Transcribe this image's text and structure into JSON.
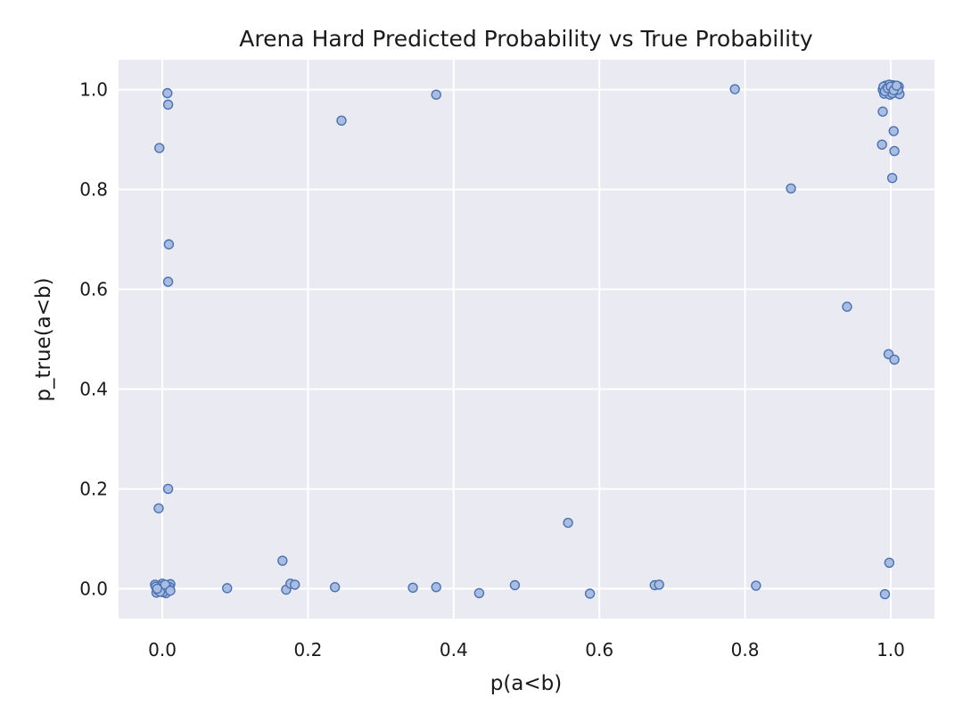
{
  "chart_data": {
    "type": "scatter",
    "title": "Arena Hard Predicted Probability vs True Probability",
    "xlabel": "p(a<b)",
    "ylabel": "p_true(a<b)",
    "xlim": [
      -0.06,
      1.06
    ],
    "ylim": [
      -0.06,
      1.06
    ],
    "xticks": [
      0.0,
      0.2,
      0.4,
      0.6,
      0.8,
      1.0
    ],
    "yticks": [
      0.0,
      0.2,
      0.4,
      0.6,
      0.8,
      1.0
    ],
    "xtick_labels": [
      "0.0",
      "0.2",
      "0.4",
      "0.6",
      "0.8",
      "1.0"
    ],
    "ytick_labels": [
      "0.0",
      "0.2",
      "0.4",
      "0.6",
      "0.8",
      "1.0"
    ],
    "grid": true,
    "colors": {
      "background": "#eaeaf2",
      "grid": "#ffffff",
      "marker_fill": "#a9bde3",
      "marker_edge": "#4c72b0"
    },
    "points": [
      {
        "x": 0.007,
        "y": 0.993
      },
      {
        "x": 0.008,
        "y": 0.97
      },
      {
        "x": -0.004,
        "y": 0.883
      },
      {
        "x": 0.009,
        "y": 0.69
      },
      {
        "x": 0.008,
        "y": 0.615
      },
      {
        "x": 0.008,
        "y": 0.2
      },
      {
        "x": -0.005,
        "y": 0.161
      },
      {
        "x": 0.246,
        "y": 0.938
      },
      {
        "x": 0.376,
        "y": 0.99
      },
      {
        "x": 0.786,
        "y": 1.001
      },
      {
        "x": 0.863,
        "y": 0.802
      },
      {
        "x": 0.94,
        "y": 0.565
      },
      {
        "x": 0.989,
        "y": 0.956
      },
      {
        "x": 0.988,
        "y": 0.89
      },
      {
        "x": 1.004,
        "y": 0.917
      },
      {
        "x": 1.005,
        "y": 0.877
      },
      {
        "x": 1.002,
        "y": 0.823
      },
      {
        "x": 0.997,
        "y": 0.47
      },
      {
        "x": 1.005,
        "y": 0.459
      },
      {
        "x": 0.998,
        "y": 0.052
      },
      {
        "x": 0.992,
        "y": -0.011
      },
      {
        "x": 0.089,
        "y": 0.001
      },
      {
        "x": 0.165,
        "y": 0.056
      },
      {
        "x": 0.17,
        "y": -0.002
      },
      {
        "x": 0.176,
        "y": 0.01
      },
      {
        "x": 0.182,
        "y": 0.008
      },
      {
        "x": 0.237,
        "y": 0.003
      },
      {
        "x": 0.344,
        "y": 0.002
      },
      {
        "x": 0.376,
        "y": 0.003
      },
      {
        "x": 0.435,
        "y": -0.009
      },
      {
        "x": 0.484,
        "y": 0.007
      },
      {
        "x": 0.557,
        "y": 0.132
      },
      {
        "x": 0.587,
        "y": -0.01
      },
      {
        "x": 0.676,
        "y": 0.007
      },
      {
        "x": 0.682,
        "y": 0.008
      },
      {
        "x": 0.815,
        "y": 0.006
      },
      {
        "x": -0.01,
        "y": 0.008
      },
      {
        "x": -0.008,
        "y": -0.008
      },
      {
        "x": -0.004,
        "y": 0.002
      },
      {
        "x": 0.0,
        "y": 0.01
      },
      {
        "x": 0.003,
        "y": -0.005
      },
      {
        "x": 0.006,
        "y": 0.006
      },
      {
        "x": 0.009,
        "y": -0.002
      },
      {
        "x": 0.011,
        "y": 0.009
      },
      {
        "x": -0.006,
        "y": -0.003
      },
      {
        "x": 0.002,
        "y": 0.0
      },
      {
        "x": -0.002,
        "y": 0.005
      },
      {
        "x": 0.005,
        "y": -0.009
      },
      {
        "x": 0.01,
        "y": 0.003
      },
      {
        "x": -0.009,
        "y": 0.004
      },
      {
        "x": 0.001,
        "y": -0.007
      },
      {
        "x": 0.007,
        "y": 0.001
      },
      {
        "x": -0.003,
        "y": -0.006
      },
      {
        "x": 0.004,
        "y": 0.008
      },
      {
        "x": 0.011,
        "y": -0.004
      },
      {
        "x": -0.007,
        "y": 0.0
      },
      {
        "x": 0.989,
        "y": 1.0
      },
      {
        "x": 0.991,
        "y": 0.992
      },
      {
        "x": 0.993,
        "y": 1.008
      },
      {
        "x": 0.995,
        "y": 0.996
      },
      {
        "x": 0.997,
        "y": 1.004
      },
      {
        "x": 0.999,
        "y": 0.99
      },
      {
        "x": 1.001,
        "y": 1.0
      },
      {
        "x": 1.003,
        "y": 1.009
      },
      {
        "x": 1.005,
        "y": 0.994
      },
      {
        "x": 1.007,
        "y": 1.002
      },
      {
        "x": 1.009,
        "y": 0.998
      },
      {
        "x": 1.011,
        "y": 1.006
      },
      {
        "x": 1.012,
        "y": 0.991
      },
      {
        "x": 0.99,
        "y": 1.006
      },
      {
        "x": 0.994,
        "y": 1.001
      },
      {
        "x": 0.998,
        "y": 1.01
      },
      {
        "x": 1.002,
        "y": 0.993
      },
      {
        "x": 1.006,
        "y": 1.005
      },
      {
        "x": 1.01,
        "y": 1.0
      },
      {
        "x": 0.992,
        "y": 0.997
      },
      {
        "x": 0.996,
        "y": 1.003
      },
      {
        "x": 1.0,
        "y": 1.006
      },
      {
        "x": 1.004,
        "y": 0.999
      },
      {
        "x": 1.008,
        "y": 1.008
      }
    ]
  }
}
